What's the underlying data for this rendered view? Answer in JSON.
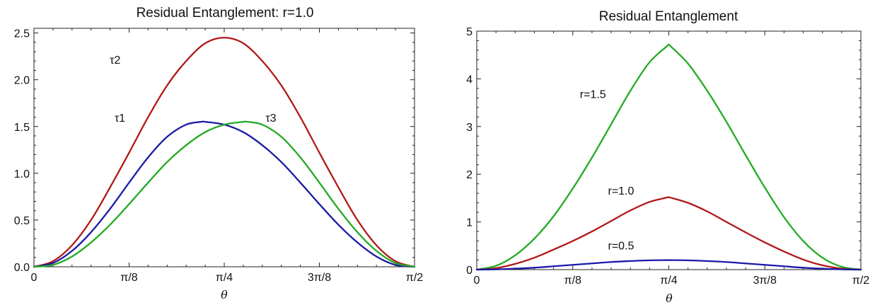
{
  "chart_data": [
    {
      "type": "line",
      "title": "Residual Entanglement: r=1.0",
      "xlabel": "θ",
      "ylabel": "",
      "xlim": [
        0,
        1.5708
      ],
      "ylim": [
        0,
        2.55
      ],
      "x_ticks": [
        {
          "value": 0,
          "label": "0"
        },
        {
          "value": 0.3927,
          "label": "π/8"
        },
        {
          "value": 0.7854,
          "label": "π/4"
        },
        {
          "value": 1.1781,
          "label": "3π/8"
        },
        {
          "value": 1.5708,
          "label": "π/2"
        }
      ],
      "y_ticks": [
        {
          "value": 0,
          "label": "0.0"
        },
        {
          "value": 0.5,
          "label": "0.5"
        },
        {
          "value": 1.0,
          "label": "1.0"
        },
        {
          "value": 1.5,
          "label": "1.5"
        },
        {
          "value": 2.0,
          "label": "2.0"
        },
        {
          "value": 2.5,
          "label": "2.5"
        }
      ],
      "series": [
        {
          "name": "τ2",
          "color": "#b01818",
          "x": [
            0,
            0.0785,
            0.1571,
            0.2356,
            0.3142,
            0.3927,
            0.4712,
            0.5498,
            0.6283,
            0.7069,
            0.7854,
            0.8639,
            0.9425,
            1.021,
            1.0996,
            1.1781,
            1.2566,
            1.3352,
            1.4137,
            1.4923,
            1.5708
          ],
          "y": [
            0,
            0.06,
            0.23,
            0.5,
            0.85,
            1.22,
            1.6,
            1.94,
            2.2,
            2.39,
            2.45,
            2.39,
            2.2,
            1.94,
            1.6,
            1.22,
            0.85,
            0.5,
            0.23,
            0.06,
            0
          ]
        },
        {
          "name": "τ1",
          "color": "#1a1aa8",
          "x": [
            0,
            0.0785,
            0.1571,
            0.2356,
            0.3142,
            0.3927,
            0.4712,
            0.5498,
            0.6283,
            0.6912,
            0.7069,
            0.7854,
            0.8639,
            0.9425,
            1.021,
            1.0996,
            1.1781,
            1.2566,
            1.3352,
            1.4137,
            1.4923,
            1.5708
          ],
          "y": [
            0,
            0.04,
            0.17,
            0.37,
            0.62,
            0.9,
            1.17,
            1.39,
            1.52,
            1.55,
            1.55,
            1.52,
            1.44,
            1.3,
            1.12,
            0.9,
            0.67,
            0.45,
            0.26,
            0.11,
            0.02,
            0
          ]
        },
        {
          "name": "τ3",
          "color": "#22aa22",
          "x": [
            0,
            0.0785,
            0.1571,
            0.2356,
            0.3142,
            0.3927,
            0.4712,
            0.5498,
            0.6283,
            0.7069,
            0.7854,
            0.8639,
            0.8796,
            0.9425,
            1.021,
            1.0996,
            1.1781,
            1.2566,
            1.3352,
            1.4137,
            1.4923,
            1.5708
          ],
          "y": [
            0,
            0.02,
            0.11,
            0.26,
            0.45,
            0.67,
            0.9,
            1.12,
            1.3,
            1.44,
            1.52,
            1.55,
            1.55,
            1.52,
            1.39,
            1.17,
            0.9,
            0.62,
            0.37,
            0.17,
            0.04,
            0
          ]
        }
      ],
      "annotations": [
        {
          "text": "τ2",
          "x": 0.335,
          "y": 2.17
        },
        {
          "text": "τ1",
          "x": 0.355,
          "y": 1.55
        },
        {
          "text": "τ3",
          "x": 0.978,
          "y": 1.55
        }
      ],
      "grid": false,
      "legend": "none"
    },
    {
      "type": "line",
      "title": "Residual Entanglement",
      "xlabel": "θ",
      "ylabel": "",
      "xlim": [
        0,
        1.5708
      ],
      "ylim": [
        0,
        5.0
      ],
      "x_ticks": [
        {
          "value": 0,
          "label": "0"
        },
        {
          "value": 0.3927,
          "label": "π/8"
        },
        {
          "value": 0.7854,
          "label": "π/4"
        },
        {
          "value": 1.1781,
          "label": "3π/8"
        },
        {
          "value": 1.5708,
          "label": "π/2"
        }
      ],
      "y_ticks": [
        {
          "value": 0,
          "label": "0"
        },
        {
          "value": 1,
          "label": "1"
        },
        {
          "value": 2,
          "label": "2"
        },
        {
          "value": 3,
          "label": "3"
        },
        {
          "value": 4,
          "label": "4"
        },
        {
          "value": 5,
          "label": "5"
        }
      ],
      "series": [
        {
          "name": "r=1.5",
          "color": "#22aa22",
          "x": [
            0,
            0.0785,
            0.1571,
            0.2356,
            0.3142,
            0.3927,
            0.4712,
            0.5498,
            0.6283,
            0.7069,
            0.7854,
            0.8639,
            0.9425,
            1.021,
            1.0996,
            1.1781,
            1.2566,
            1.3352,
            1.4137,
            1.4923,
            1.5708
          ],
          "y": [
            0,
            0.08,
            0.3,
            0.65,
            1.12,
            1.7,
            2.35,
            3.05,
            3.75,
            4.35,
            4.72,
            4.32,
            3.75,
            3.1,
            2.4,
            1.72,
            1.1,
            0.6,
            0.25,
            0.06,
            0
          ]
        },
        {
          "name": "r=1.0",
          "color": "#b01818",
          "x": [
            0,
            0.0785,
            0.1571,
            0.2356,
            0.3142,
            0.3927,
            0.4712,
            0.5498,
            0.6283,
            0.7069,
            0.7854,
            0.8639,
            0.9425,
            1.021,
            1.0996,
            1.1781,
            1.2566,
            1.3352,
            1.4137,
            1.4923,
            1.5708
          ],
          "y": [
            0,
            0.03,
            0.12,
            0.25,
            0.42,
            0.6,
            0.8,
            1.02,
            1.24,
            1.42,
            1.52,
            1.4,
            1.22,
            1.0,
            0.78,
            0.57,
            0.38,
            0.21,
            0.09,
            0.02,
            0
          ]
        },
        {
          "name": "r=0.5",
          "color": "#1a1aa8",
          "x": [
            0,
            0.0785,
            0.1571,
            0.2356,
            0.3142,
            0.3927,
            0.4712,
            0.5498,
            0.6283,
            0.7069,
            0.7854,
            0.8639,
            0.9425,
            1.021,
            1.0996,
            1.1781,
            1.2566,
            1.3352,
            1.4137,
            1.4923,
            1.5708
          ],
          "y": [
            0,
            0.005,
            0.02,
            0.04,
            0.07,
            0.1,
            0.13,
            0.16,
            0.18,
            0.195,
            0.2,
            0.195,
            0.18,
            0.16,
            0.13,
            0.1,
            0.07,
            0.04,
            0.02,
            0.005,
            0
          ]
        }
      ],
      "annotations": [
        {
          "text": "r=1.5",
          "x": 0.475,
          "y": 3.6
        },
        {
          "text": "r=1.0",
          "x": 0.59,
          "y": 1.57
        },
        {
          "text": "r=0.5",
          "x": 0.59,
          "y": 0.42
        }
      ],
      "grid": false,
      "legend": "none"
    }
  ]
}
